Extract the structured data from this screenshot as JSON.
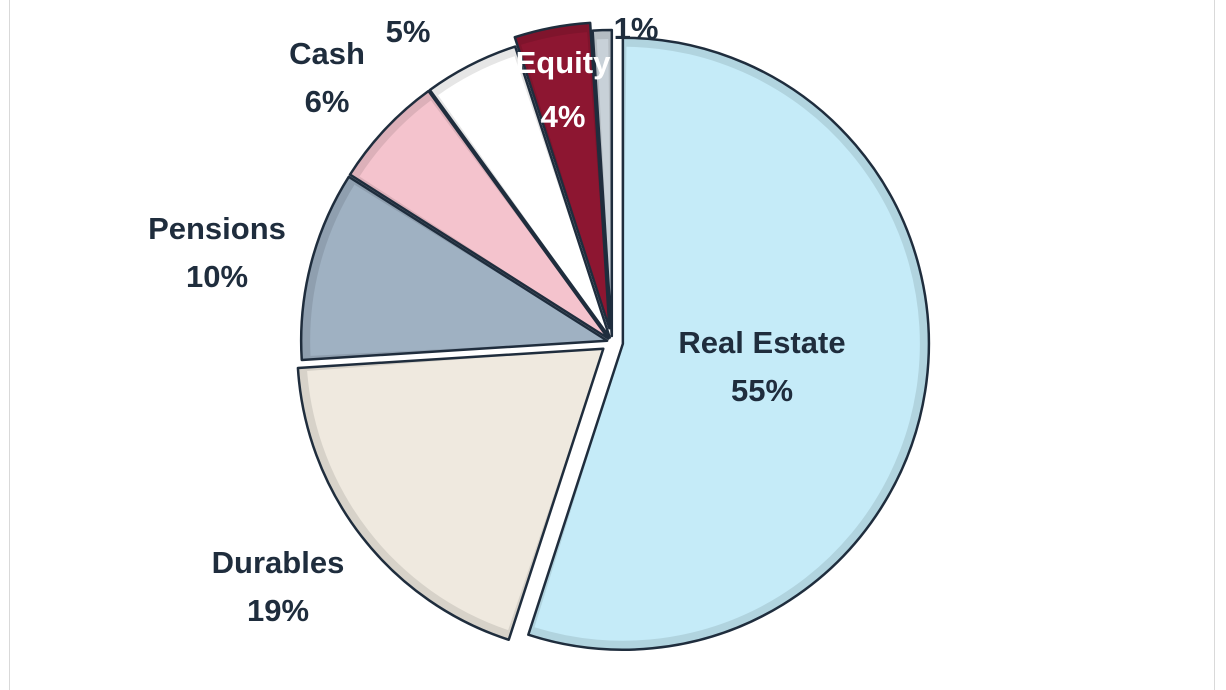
{
  "chart_data": {
    "type": "pie",
    "slices": [
      {
        "label": "Real Estate",
        "value": 55,
        "value_label": "55%",
        "color": "#c5ebf8",
        "label_color": "#1f2d3d"
      },
      {
        "label": "Durables",
        "value": 19,
        "value_label": "19%",
        "color": "#efe9df",
        "label_color": "#1f2d3d"
      },
      {
        "label": "Pensions",
        "value": 10,
        "value_label": "10%",
        "color": "#9fb1c2",
        "label_color": "#1f2d3d"
      },
      {
        "label": "Cash",
        "value": 6,
        "value_label": "6%",
        "color": "#f4c3cd",
        "label_color": "#1f2d3d"
      },
      {
        "label": "",
        "value": 5,
        "value_label": "5%",
        "color": "#ffffff",
        "label_color": "#1f2d3d"
      },
      {
        "label": "Equity",
        "value": 4,
        "value_label": "4%",
        "color": "#8d1631",
        "label_color": "#ffffff"
      },
      {
        "label": "",
        "value": 1,
        "value_label": "1%",
        "color": "#c8d1d8",
        "label_color": "#1f2d3d"
      }
    ],
    "exploded": true,
    "start": "12 o'clock",
    "direction": "clockwise",
    "legend": "none"
  }
}
